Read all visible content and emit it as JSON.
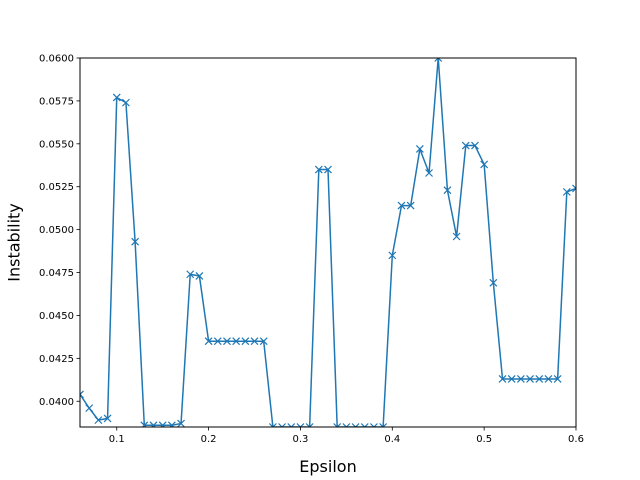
{
  "chart_data": {
    "type": "line",
    "title": "",
    "xlabel": "Epsilon",
    "ylabel": "Instability",
    "xlim": [
      0.06,
      0.6
    ],
    "ylim": [
      0.0385,
      0.06
    ],
    "grid": false,
    "legend": "none",
    "marker": "x",
    "color": "#1f77b4",
    "x_ticks": [
      0.1,
      0.2,
      0.3,
      0.4,
      0.5,
      0.6
    ],
    "x_tick_labels": [
      "0.1",
      "0.2",
      "0.3",
      "0.4",
      "0.5",
      "0.6"
    ],
    "y_ticks": [
      0.04,
      0.0425,
      0.045,
      0.0475,
      0.05,
      0.0525,
      0.055,
      0.0575,
      0.06
    ],
    "y_tick_labels": [
      "0.0400",
      "0.0425",
      "0.0450",
      "0.0475",
      "0.0500",
      "0.0525",
      "0.0550",
      "0.0575",
      "0.0600"
    ],
    "series": [
      {
        "x": [
          0.06,
          0.07,
          0.08,
          0.09,
          0.1,
          0.11,
          0.12,
          0.13,
          0.14,
          0.15,
          0.16,
          0.17,
          0.18,
          0.19,
          0.2,
          0.21,
          0.22,
          0.23,
          0.24,
          0.25,
          0.26,
          0.27,
          0.28,
          0.29,
          0.3,
          0.31,
          0.32,
          0.33,
          0.34,
          0.35,
          0.36,
          0.37,
          0.38,
          0.39,
          0.4,
          0.41,
          0.42,
          0.43,
          0.44,
          0.45,
          0.46,
          0.47,
          0.48,
          0.49,
          0.5,
          0.51,
          0.52,
          0.53,
          0.54,
          0.55,
          0.56,
          0.57,
          0.58,
          0.59,
          0.6
        ],
        "y": [
          0.0404,
          0.0396,
          0.0389,
          0.039,
          0.0577,
          0.0574,
          0.0493,
          0.0386,
          0.0386,
          0.0386,
          0.0386,
          0.0387,
          0.0474,
          0.0473,
          0.0435,
          0.0435,
          0.0435,
          0.0435,
          0.0435,
          0.0435,
          0.0435,
          0.0385,
          0.0385,
          0.0385,
          0.0385,
          0.0385,
          0.0535,
          0.0535,
          0.0385,
          0.0385,
          0.0385,
          0.0385,
          0.0385,
          0.0385,
          0.0485,
          0.0514,
          0.0514,
          0.0547,
          0.0533,
          0.06,
          0.0523,
          0.0496,
          0.0549,
          0.0549,
          0.0538,
          0.0469,
          0.0413,
          0.0413,
          0.0413,
          0.0413,
          0.0413,
          0.0413,
          0.0413,
          0.0522,
          0.0524
        ]
      }
    ]
  }
}
